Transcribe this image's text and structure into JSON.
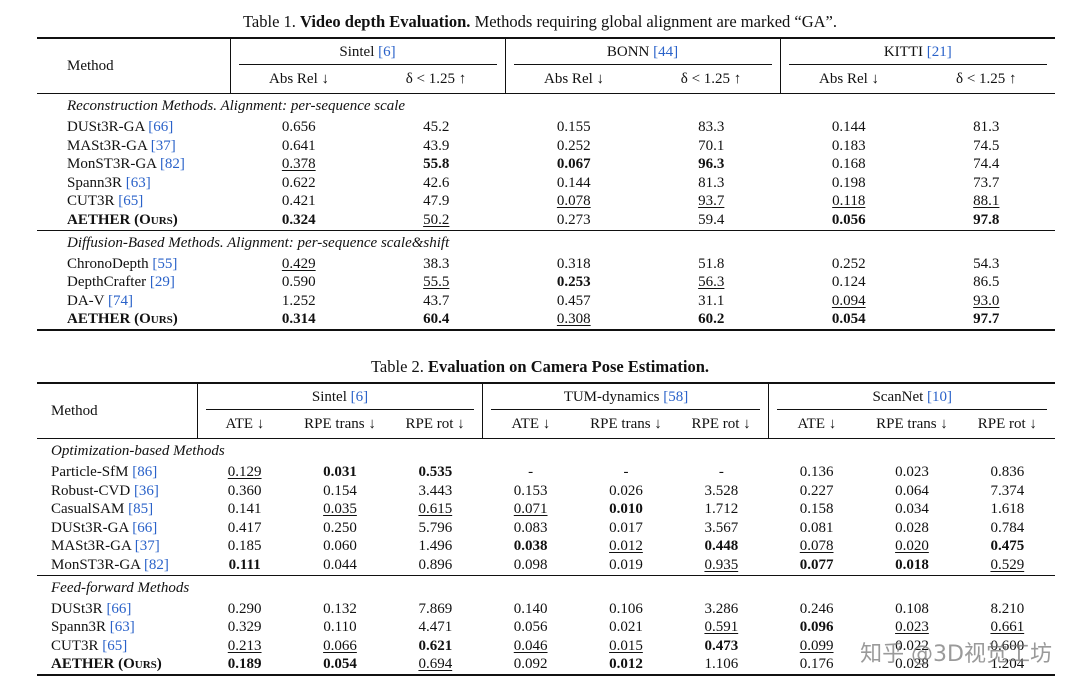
{
  "tables": [
    {
      "caption": {
        "label": "Table 1.",
        "title": "Video depth Evaluation.",
        "text": "Methods requiring global alignment are marked “GA”."
      },
      "method_header": "Method",
      "groups": [
        {
          "name": "Sintel",
          "cite": "[6]"
        },
        {
          "name": "BONN",
          "cite": "[44]"
        },
        {
          "name": "KITTI",
          "cite": "[21]"
        }
      ],
      "subheaders": [
        "Abs Rel ↓",
        "δ < 1.25 ↑"
      ],
      "sections": [
        {
          "title": "Reconstruction Methods. Alignment: per-sequence scale",
          "rows": [
            {
              "method": "DUSt3R-GA",
              "cite": "[66]",
              "cells": [
                "0.656",
                "45.2",
                "0.155",
                "83.3",
                "0.144",
                "81.3"
              ],
              "bold": [],
              "underline": []
            },
            {
              "method": "MASt3R-GA",
              "cite": "[37]",
              "cells": [
                "0.641",
                "43.9",
                "0.252",
                "70.1",
                "0.183",
                "74.5"
              ],
              "bold": [],
              "underline": []
            },
            {
              "method": "MonST3R-GA",
              "cite": "[82]",
              "cells": [
                "0.378",
                "55.8",
                "0.067",
                "96.3",
                "0.168",
                "74.4"
              ],
              "bold": [
                1,
                2,
                3
              ],
              "underline": [
                0
              ]
            },
            {
              "method": "Spann3R",
              "cite": "[63]",
              "cells": [
                "0.622",
                "42.6",
                "0.144",
                "81.3",
                "0.198",
                "73.7"
              ],
              "bold": [],
              "underline": []
            },
            {
              "method": "CUT3R",
              "cite": "[65]",
              "cells": [
                "0.421",
                "47.9",
                "0.078",
                "93.7",
                "0.118",
                "88.1"
              ],
              "bold": [],
              "underline": [
                2,
                3,
                4,
                5
              ]
            },
            {
              "method": "AETHER (Ours)",
              "cells": [
                "0.324",
                "50.2",
                "0.273",
                "59.4",
                "0.056",
                "97.8"
              ],
              "bold": [
                0,
                4,
                5
              ],
              "underline": [
                1
              ],
              "ours": true
            }
          ]
        },
        {
          "title": "Diffusion-Based Methods. Alignment: per-sequence scale&shift",
          "rows": [
            {
              "method": "ChronoDepth",
              "cite": "[55]",
              "cells": [
                "0.429",
                "38.3",
                "0.318",
                "51.8",
                "0.252",
                "54.3"
              ],
              "bold": [],
              "underline": [
                0
              ]
            },
            {
              "method": "DepthCrafter",
              "cite": "[29]",
              "cells": [
                "0.590",
                "55.5",
                "0.253",
                "56.3",
                "0.124",
                "86.5"
              ],
              "bold": [
                2
              ],
              "underline": [
                1,
                3
              ]
            },
            {
              "method": "DA-V",
              "cite": "[74]",
              "cells": [
                "1.252",
                "43.7",
                "0.457",
                "31.1",
                "0.094",
                "93.0"
              ],
              "bold": [],
              "underline": [
                4,
                5
              ]
            },
            {
              "method": "AETHER (Ours)",
              "cells": [
                "0.314",
                "60.4",
                "0.308",
                "60.2",
                "0.054",
                "97.7"
              ],
              "bold": [
                0,
                1,
                3,
                4,
                5
              ],
              "underline": [
                2
              ],
              "ours": true
            }
          ]
        }
      ]
    },
    {
      "caption": {
        "label": "Table 2.",
        "title": "Evaluation on Camera Pose Estimation."
      },
      "method_header": "Method",
      "groups": [
        {
          "name": "Sintel",
          "cite": "[6]"
        },
        {
          "name": "TUM-dynamics",
          "cite": "[58]"
        },
        {
          "name": "ScanNet",
          "cite": "[10]"
        }
      ],
      "subheaders": [
        "ATE ↓",
        "RPE trans ↓",
        "RPE rot ↓"
      ],
      "sections": [
        {
          "title": "Optimization-based Methods",
          "rows": [
            {
              "method": "Particle-SfM",
              "cite": "[86]",
              "cells": [
                "0.129",
                "0.031",
                "0.535",
                "-",
                "-",
                "-",
                "0.136",
                "0.023",
                "0.836"
              ],
              "bold": [
                1,
                2
              ],
              "underline": [
                0
              ]
            },
            {
              "method": "Robust-CVD",
              "cite": "[36]",
              "cells": [
                "0.360",
                "0.154",
                "3.443",
                "0.153",
                "0.026",
                "3.528",
                "0.227",
                "0.064",
                "7.374"
              ],
              "bold": [],
              "underline": []
            },
            {
              "method": "CasualSAM",
              "cite": "[85]",
              "cells": [
                "0.141",
                "0.035",
                "0.615",
                "0.071",
                "0.010",
                "1.712",
                "0.158",
                "0.034",
                "1.618"
              ],
              "bold": [
                4
              ],
              "underline": [
                1,
                2,
                3
              ]
            },
            {
              "method": "DUSt3R-GA",
              "cite": "[66]",
              "cells": [
                "0.417",
                "0.250",
                "5.796",
                "0.083",
                "0.017",
                "3.567",
                "0.081",
                "0.028",
                "0.784"
              ],
              "bold": [],
              "underline": []
            },
            {
              "method": "MASt3R-GA",
              "cite": "[37]",
              "cells": [
                "0.185",
                "0.060",
                "1.496",
                "0.038",
                "0.012",
                "0.448",
                "0.078",
                "0.020",
                "0.475"
              ],
              "bold": [
                3,
                5,
                8
              ],
              "underline": [
                4,
                6,
                7
              ]
            },
            {
              "method": "MonST3R-GA",
              "cite": "[82]",
              "cells": [
                "0.111",
                "0.044",
                "0.896",
                "0.098",
                "0.019",
                "0.935",
                "0.077",
                "0.018",
                "0.529"
              ],
              "bold": [
                0,
                6,
                7
              ],
              "underline": [
                5,
                8
              ]
            }
          ]
        },
        {
          "title": "Feed-forward Methods",
          "rows": [
            {
              "method": "DUSt3R",
              "cite": "[66]",
              "cells": [
                "0.290",
                "0.132",
                "7.869",
                "0.140",
                "0.106",
                "3.286",
                "0.246",
                "0.108",
                "8.210"
              ],
              "bold": [],
              "underline": []
            },
            {
              "method": "Spann3R",
              "cite": "[63]",
              "cells": [
                "0.329",
                "0.110",
                "4.471",
                "0.056",
                "0.021",
                "0.591",
                "0.096",
                "0.023",
                "0.661"
              ],
              "bold": [
                6
              ],
              "underline": [
                5,
                7,
                8
              ]
            },
            {
              "method": "CUT3R",
              "cite": "[65]",
              "cells": [
                "0.213",
                "0.066",
                "0.621",
                "0.046",
                "0.015",
                "0.473",
                "0.099",
                "0.022",
                "0.600"
              ],
              "bold": [
                2,
                5
              ],
              "underline": [
                0,
                1,
                3,
                4,
                6
              ]
            },
            {
              "method": "AETHER (Ours)",
              "cells": [
                "0.189",
                "0.054",
                "0.694",
                "0.092",
                "0.012",
                "1.106",
                "0.176",
                "0.028",
                "1.204"
              ],
              "bold": [
                0,
                1,
                4
              ],
              "underline": [
                2
              ],
              "ours": true
            }
          ]
        }
      ]
    }
  ],
  "watermark": "知乎 @3D视觉工坊"
}
